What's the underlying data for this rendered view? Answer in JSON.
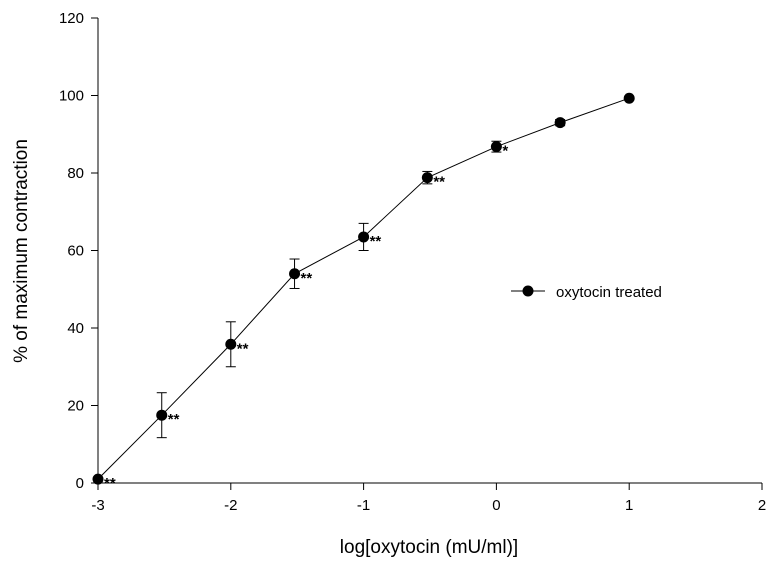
{
  "chart_data": {
    "type": "line",
    "title": "",
    "xlabel": "log[oxytocin (mU/ml)]",
    "ylabel": "% of maximum contraction",
    "xlim": [
      -3,
      2
    ],
    "ylim": [
      0,
      120
    ],
    "xticks": [
      -3,
      -2,
      -1,
      0,
      1,
      2
    ],
    "yticks": [
      0,
      20,
      40,
      60,
      80,
      100,
      120
    ],
    "xtick_labels": [
      "-3",
      "-2",
      "-1",
      "0",
      "1",
      "2"
    ],
    "ytick_labels": [
      "0",
      "20",
      "40",
      "60",
      "80",
      "100",
      "120"
    ],
    "grid": false,
    "legend_position": "center-right",
    "series": [
      {
        "name": "oxytocin treated",
        "color": "#000000",
        "marker": "filled-circle",
        "x": [
          -3,
          -2.52,
          -2,
          -1.52,
          -1,
          -0.52,
          0,
          0.48,
          1
        ],
        "y": [
          1,
          17.5,
          35.8,
          54,
          63.5,
          78.8,
          86.8,
          93,
          99.3
        ],
        "error": [
          0.5,
          5.8,
          5.8,
          3.8,
          3.5,
          1.6,
          1.4,
          0.8,
          0.5
        ],
        "annotations": [
          "**",
          "**",
          "**",
          "**",
          "**",
          "**",
          "*",
          "",
          ""
        ]
      }
    ]
  }
}
